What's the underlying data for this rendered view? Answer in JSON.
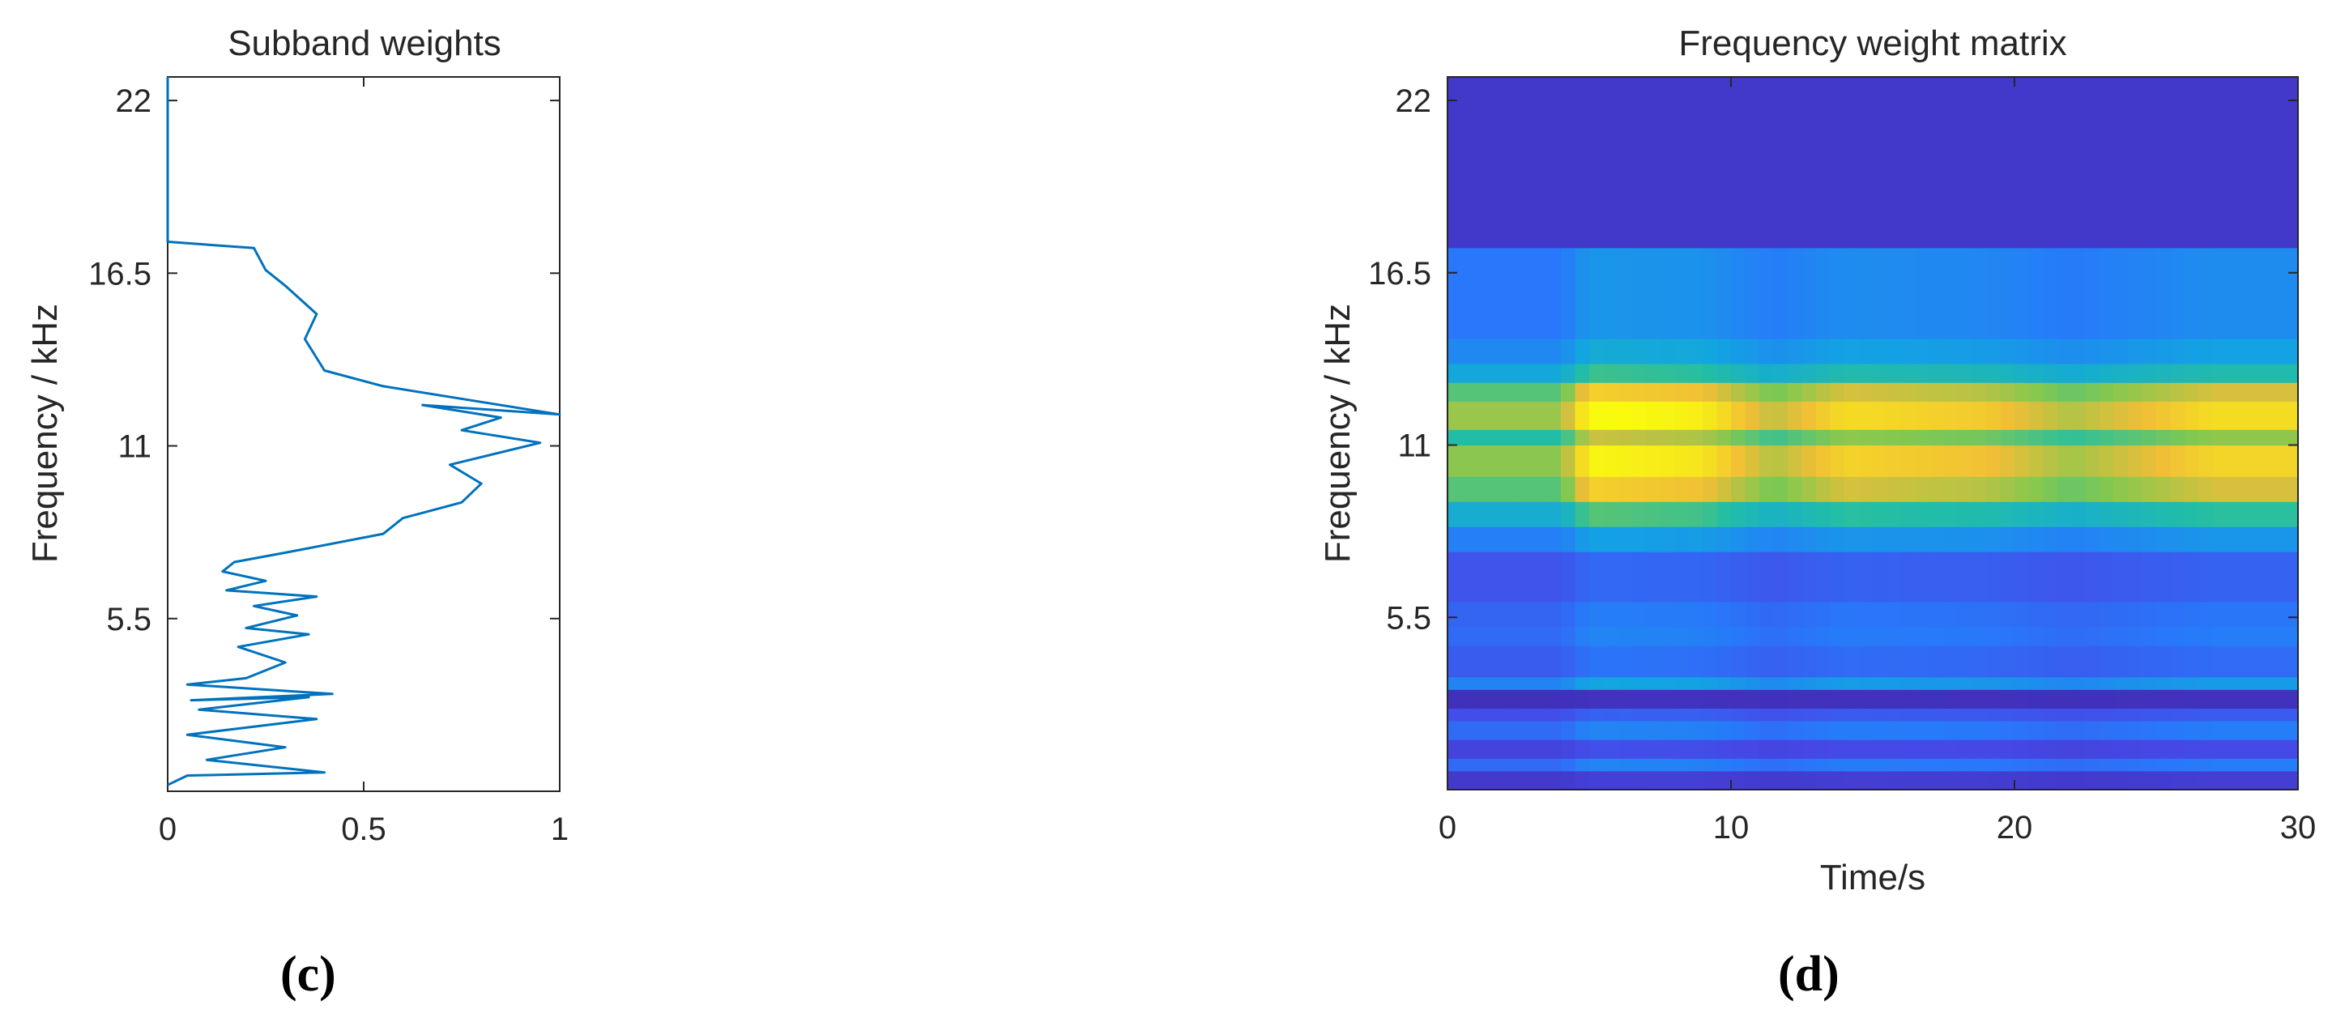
{
  "figure": {
    "panel_c_label": "(c)",
    "panel_d_label": "(d)"
  },
  "chart_data": [
    {
      "type": "line",
      "title": "Subband weights",
      "xlabel": "",
      "ylabel": "Frequency / kHz",
      "xlim": [
        0,
        1
      ],
      "ylim": [
        0,
        22.75
      ],
      "xticks": [
        0,
        0.5,
        1
      ],
      "xtick_labels": [
        "0",
        "0.5",
        "1"
      ],
      "yticks": [
        5.5,
        11,
        16.5,
        22
      ],
      "ytick_labels": [
        "5.5",
        "11",
        "16.5",
        "22"
      ],
      "grid": false,
      "color": "#0072BD",
      "series": [
        {
          "x": [
            0.0,
            0.05,
            0.4,
            0.1,
            0.3,
            0.05,
            0.38,
            0.08,
            0.36,
            0.06,
            0.42,
            0.05,
            0.2,
            0.3,
            0.18,
            0.36,
            0.2,
            0.33,
            0.22,
            0.38,
            0.15,
            0.25,
            0.14,
            0.17,
            0.3,
            0.55,
            0.6,
            0.75,
            0.8,
            0.72,
            0.95,
            0.75,
            0.85,
            0.65,
            1.0,
            0.8,
            0.55,
            0.4,
            0.35,
            0.38,
            0.3,
            0.25,
            0.22,
            0.0,
            0.0
          ],
          "y": [
            0.2,
            0.5,
            0.6,
            1.0,
            1.4,
            1.8,
            2.3,
            2.6,
            3.0,
            2.9,
            3.1,
            3.4,
            3.6,
            4.1,
            4.6,
            5.0,
            5.2,
            5.6,
            5.9,
            6.2,
            6.4,
            6.7,
            7.0,
            7.3,
            7.6,
            8.2,
            8.7,
            9.2,
            9.8,
            10.4,
            11.1,
            11.5,
            11.9,
            12.3,
            12.0,
            12.4,
            12.9,
            13.4,
            14.4,
            15.2,
            16.1,
            16.6,
            17.3,
            17.5,
            22.75
          ]
        }
      ]
    },
    {
      "type": "heatmap",
      "title": "Frequency weight matrix",
      "xlabel": "Time/s",
      "ylabel": "Frequency / kHz",
      "xlim": [
        0,
        30
      ],
      "ylim": [
        0,
        22.75
      ],
      "xticks": [
        0,
        10,
        20,
        30
      ],
      "xtick_labels": [
        "0",
        "10",
        "20",
        "30"
      ],
      "yticks": [
        5.5,
        11,
        16.5,
        22
      ],
      "ytick_labels": [
        "5.5",
        "11",
        "16.5",
        "22"
      ],
      "colormap": "parula",
      "value_range": [
        0,
        1
      ],
      "bands": [
        {
          "y0": 0.0,
          "y1": 0.6,
          "v": 0.1
        },
        {
          "y0": 0.6,
          "y1": 1.0,
          "v": 0.3
        },
        {
          "y0": 1.0,
          "y1": 1.6,
          "v": 0.15
        },
        {
          "y0": 1.6,
          "y1": 2.2,
          "v": 0.3
        },
        {
          "y0": 2.2,
          "y1": 2.6,
          "v": 0.2
        },
        {
          "y0": 2.6,
          "y1": 3.2,
          "v": 0.05
        },
        {
          "y0": 3.2,
          "y1": 3.6,
          "v": 0.4
        },
        {
          "y0": 3.6,
          "y1": 4.6,
          "v": 0.25
        },
        {
          "y0": 4.6,
          "y1": 5.2,
          "v": 0.3
        },
        {
          "y0": 5.2,
          "y1": 6.0,
          "v": 0.28
        },
        {
          "y0": 6.0,
          "y1": 7.6,
          "v": 0.22
        },
        {
          "y0": 7.6,
          "y1": 8.4,
          "v": 0.38
        },
        {
          "y0": 8.4,
          "y1": 9.2,
          "v": 0.58
        },
        {
          "y0": 9.2,
          "y1": 10.0,
          "v": 0.78
        },
        {
          "y0": 10.0,
          "y1": 11.0,
          "v": 0.86
        },
        {
          "y0": 11.0,
          "y1": 11.5,
          "v": 0.7
        },
        {
          "y0": 11.5,
          "y1": 12.4,
          "v": 0.88
        },
        {
          "y0": 12.4,
          "y1": 13.0,
          "v": 0.78
        },
        {
          "y0": 13.0,
          "y1": 13.6,
          "v": 0.55
        },
        {
          "y0": 13.6,
          "y1": 14.4,
          "v": 0.42
        },
        {
          "y0": 14.4,
          "y1": 17.3,
          "v": 0.35
        },
        {
          "y0": 17.3,
          "y1": 22.75,
          "v": 0.08
        }
      ],
      "time_modulation": [
        {
          "t": 0,
          "m": 0.85
        },
        {
          "t": 4,
          "m": 0.85
        },
        {
          "t": 5,
          "m": 1.15
        },
        {
          "t": 9,
          "m": 1.1
        },
        {
          "t": 11.5,
          "m": 0.9
        },
        {
          "t": 14,
          "m": 1.05
        },
        {
          "t": 19,
          "m": 1.0
        },
        {
          "t": 22,
          "m": 0.88
        },
        {
          "t": 27,
          "m": 1.05
        },
        {
          "t": 30,
          "m": 1.05
        }
      ]
    }
  ]
}
